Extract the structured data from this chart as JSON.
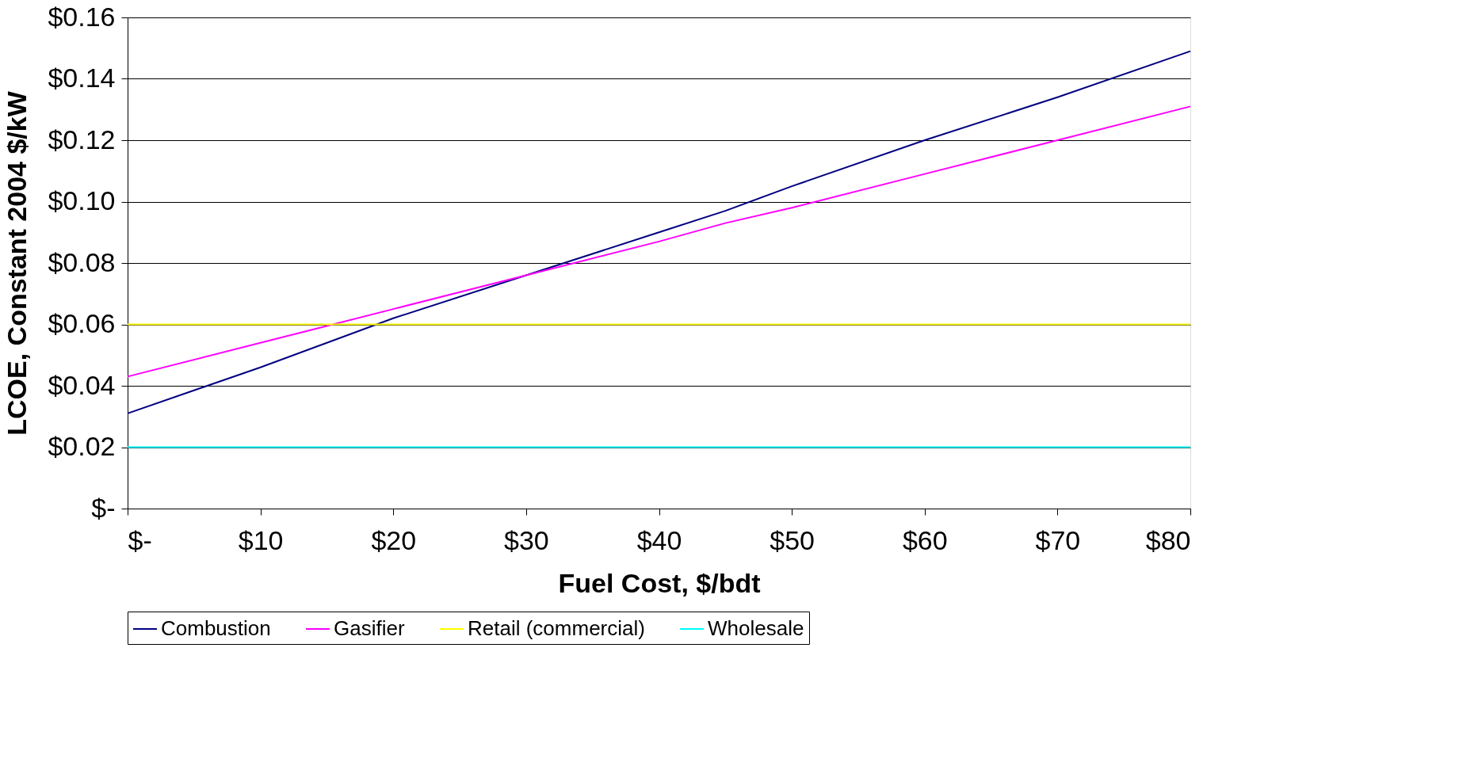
{
  "chart_data": {
    "type": "line",
    "xlabel": "Fuel Cost, $/bdt",
    "ylabel": "LCOE, Constant 2004 $/kW",
    "x": [
      0,
      10,
      15,
      20,
      30,
      40,
      45,
      50,
      60,
      70,
      80
    ],
    "series": [
      {
        "name": "Combustion",
        "color": "#000080",
        "values": [
          0.031,
          0.046,
          0.054,
          0.062,
          0.076,
          0.09,
          0.097,
          0.105,
          0.12,
          0.134,
          0.149
        ]
      },
      {
        "name": "Gasifier",
        "color": "#ff00ff",
        "values": [
          0.043,
          0.054,
          0.0595,
          0.065,
          0.076,
          0.087,
          0.093,
          0.098,
          0.109,
          0.12,
          0.131
        ]
      },
      {
        "name": "Retail (commercial)",
        "color": "#ffff00",
        "values": [
          0.06,
          0.06,
          0.06,
          0.06,
          0.06,
          0.06,
          0.06,
          0.06,
          0.06,
          0.06,
          0.06
        ]
      },
      {
        "name": "Wholesale",
        "color": "#00ffff",
        "values": [
          0.02,
          0.02,
          0.02,
          0.02,
          0.02,
          0.02,
          0.02,
          0.02,
          0.02,
          0.02,
          0.02
        ]
      }
    ],
    "xlim": [
      0,
      80
    ],
    "xticks": [
      {
        "value": 0,
        "label": "$-"
      },
      {
        "value": 10,
        "label": "$10"
      },
      {
        "value": 20,
        "label": "$20"
      },
      {
        "value": 30,
        "label": "$30"
      },
      {
        "value": 40,
        "label": "$40"
      },
      {
        "value": 50,
        "label": "$50"
      },
      {
        "value": 60,
        "label": "$60"
      },
      {
        "value": 70,
        "label": "$70"
      },
      {
        "value": 80,
        "label": "$80"
      }
    ],
    "ylim": [
      0,
      0.16
    ],
    "yticks": [
      {
        "value": 0,
        "label": "$-"
      },
      {
        "value": 0.02,
        "label": "$0.02"
      },
      {
        "value": 0.04,
        "label": "$0.04"
      },
      {
        "value": 0.06,
        "label": "$0.06"
      },
      {
        "value": 0.08,
        "label": "$0.08"
      },
      {
        "value": 0.1,
        "label": "$0.10"
      },
      {
        "value": 0.12,
        "label": "$0.12"
      },
      {
        "value": 0.14,
        "label": "$0.14"
      },
      {
        "value": 0.16,
        "label": "$0.16"
      }
    ],
    "grid": "y",
    "legend": "bottom",
    "marker": "none",
    "line_style": "solid"
  }
}
